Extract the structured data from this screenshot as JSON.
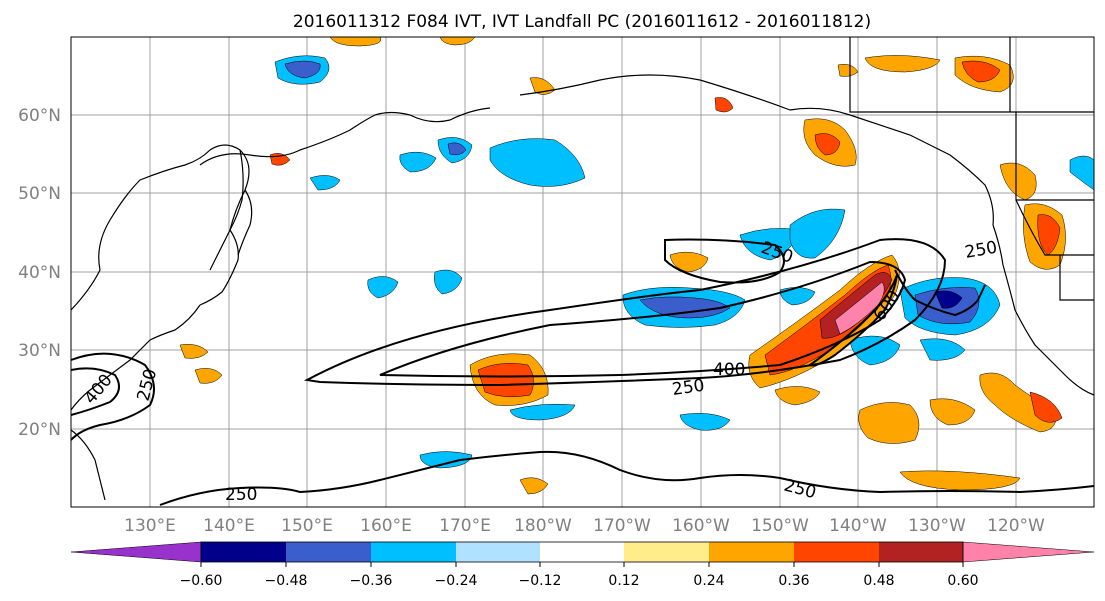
{
  "title": "2016011312 F084 IVT, IVT Landfall PC (2016011612 - 2016011812)",
  "map": {
    "lat_labels": [
      "20°N",
      "30°N",
      "40°N",
      "50°N",
      "60°N"
    ],
    "lon_labels": [
      "130°E",
      "140°E",
      "150°E",
      "160°E",
      "170°E",
      "180°W",
      "170°W",
      "160°W",
      "150°W",
      "140°W",
      "130°W",
      "120°W"
    ],
    "contour_labels": [
      "250",
      "400",
      "600",
      "250",
      "250",
      "400",
      "250",
      "250",
      "250"
    ]
  },
  "colorbar": {
    "colors": [
      "#9932cc",
      "#00008b",
      "#3a5fcd",
      "#00bfff",
      "#b0e2ff",
      "#ffffff",
      "#ffec8b",
      "#ffa500",
      "#ff4500",
      "#b22222",
      "#ff82ab"
    ],
    "tick_labels": [
      "−0.60",
      "−0.48",
      "−0.36",
      "−0.24",
      "−0.12",
      "0.12",
      "0.24",
      "0.36",
      "0.48",
      "0.60"
    ]
  }
}
